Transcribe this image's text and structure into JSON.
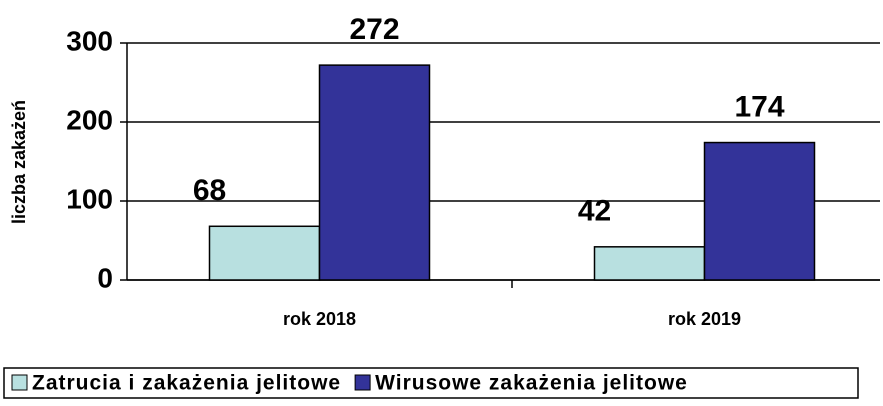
{
  "chart_data": {
    "type": "bar",
    "y_label": "liczba zakażeń",
    "categories": [
      "rok 2018",
      "rok 2019"
    ],
    "series": [
      {
        "name": "Zatrucia i zakażenia jelitowe",
        "color": "#b8e0e0",
        "values": [
          68,
          42
        ]
      },
      {
        "name": "Wirusowe zakażenia jelitowe",
        "color": "#333399",
        "values": [
          272,
          174
        ]
      }
    ],
    "ylim": [
      0,
      300
    ],
    "yticks": [
      0,
      100,
      200,
      300
    ],
    "grid": true,
    "legend": "bottom"
  }
}
